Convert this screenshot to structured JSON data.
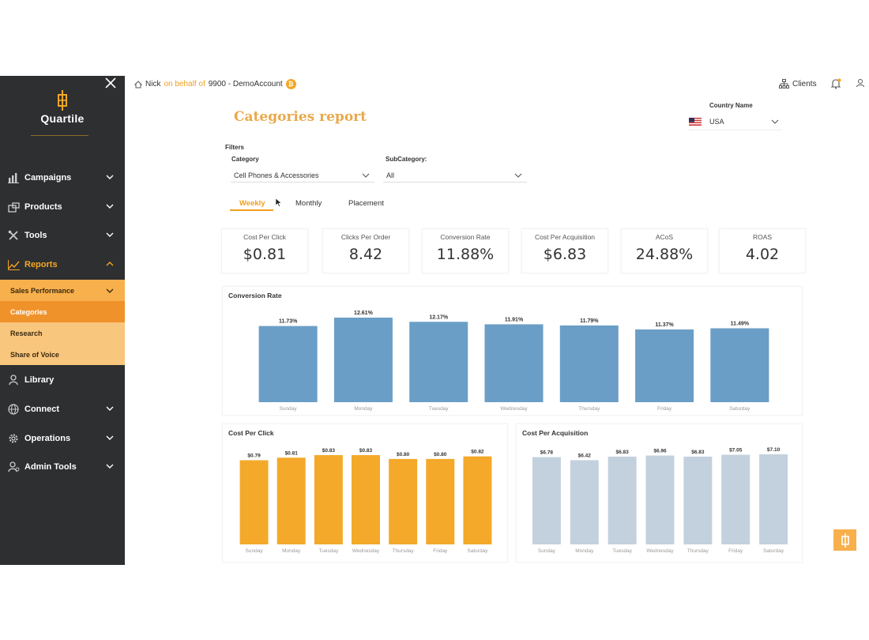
{
  "sidebar": {
    "brand": "Quartile",
    "items": [
      {
        "label": "Campaigns",
        "icon": "bar-chart-icon",
        "chevron": "down"
      },
      {
        "label": "Products",
        "icon": "box-icon",
        "chevron": "down"
      },
      {
        "label": "Tools",
        "icon": "tools-icon",
        "chevron": "down"
      },
      {
        "label": "Reports",
        "icon": "line-chart-icon",
        "chevron": "up",
        "active": true
      },
      {
        "label": "Library",
        "icon": "user-book-icon",
        "chevron": ""
      },
      {
        "label": "Connect",
        "icon": "globe-icon",
        "chevron": "down"
      },
      {
        "label": "Operations",
        "icon": "gear-icon",
        "chevron": "down"
      },
      {
        "label": "Admin Tools",
        "icon": "admin-user-icon",
        "chevron": "down"
      }
    ],
    "sub_items": [
      {
        "label": "Sales Performance"
      },
      {
        "label": "Categories"
      },
      {
        "label": "Research"
      },
      {
        "label": "Share of Voice"
      }
    ]
  },
  "topbar": {
    "user": "Nick",
    "behalf_text": "on behalf of",
    "account": "9900 - DemoAccount",
    "clients_label": "Clients"
  },
  "report": {
    "title": "Categories report",
    "country_label": "Country Name",
    "country_value": "USA",
    "filters_label": "Filters",
    "category_label": "Category",
    "category_value": "Cell Phones & Accessories",
    "subcategory_label": "SubCategory:",
    "subcategory_value": "All",
    "tabs": [
      "Weekly",
      "Monthly",
      "Placement"
    ],
    "kpis": [
      {
        "label": "Cost Per Click",
        "value": "$0.81"
      },
      {
        "label": "Clicks Per Order",
        "value": "8.42"
      },
      {
        "label": "Conversion Rate",
        "value": "11.88%"
      },
      {
        "label": "Cost Per Acquisition",
        "value": "$6.83"
      },
      {
        "label": "ACoS",
        "value": "24.88%"
      },
      {
        "label": "ROAS",
        "value": "4.02"
      }
    ]
  },
  "colors": {
    "accent": "#f5a623",
    "sidebar_bg": "#2e2f31",
    "conversion_bar": "#6a9ec6",
    "cpc_bar": "#f4a92a",
    "cpa_bar": "#c3d1de"
  },
  "chart_data": [
    {
      "type": "bar",
      "title": "Conversion Rate",
      "categories": [
        "Sunday",
        "Monday",
        "Tuesday",
        "Wednesday",
        "Thursday",
        "Friday",
        "Saturday"
      ],
      "values": [
        11.73,
        12.61,
        12.17,
        11.91,
        11.79,
        11.37,
        11.49
      ],
      "labels": [
        "11.73%",
        "12.61%",
        "12.17%",
        "11.91%",
        "11.79%",
        "11.37%",
        "11.49%"
      ]
    },
    {
      "type": "bar",
      "title": "Cost Per Click",
      "categories": [
        "Sunday",
        "Monday",
        "Tuesday",
        "Wednesday",
        "Thursday",
        "Friday",
        "Saturday"
      ],
      "values": [
        0.79,
        0.81,
        0.83,
        0.83,
        0.8,
        0.8,
        0.82
      ],
      "labels": [
        "$0.79",
        "$0.81",
        "$0.83",
        "$0.83",
        "$0.80",
        "$0.80",
        "$0.82"
      ]
    },
    {
      "type": "bar",
      "title": "Cost Per Acquisition",
      "categories": [
        "Sunday",
        "Monday",
        "Tuesday",
        "Wednesday",
        "Thursday",
        "Friday",
        "Saturday"
      ],
      "values": [
        6.78,
        6.42,
        6.83,
        6.96,
        6.83,
        7.05,
        7.1
      ],
      "labels": [
        "$6.78",
        "$6.42",
        "$6.83",
        "$6.96",
        "$6.83",
        "$7.05",
        "$7.10"
      ]
    }
  ]
}
